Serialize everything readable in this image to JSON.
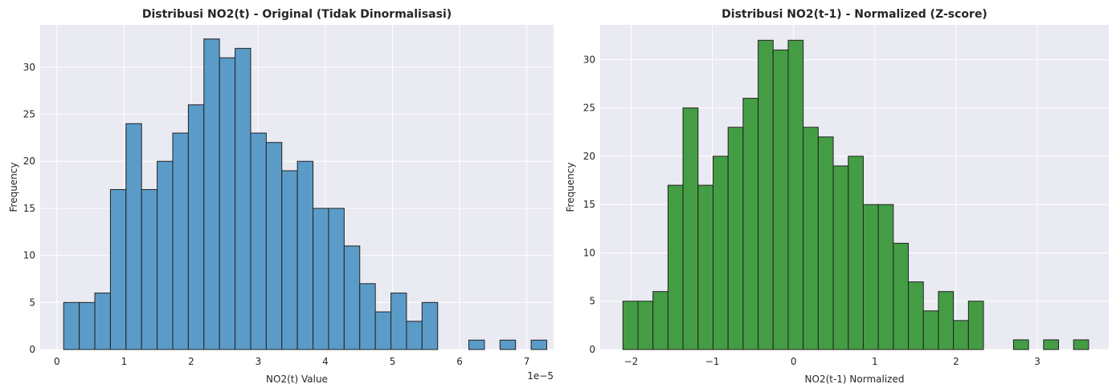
{
  "chart_data": [
    {
      "type": "bar",
      "title": "Distribusi NO2(t) - Original (Tidak Dinormalisasi)",
      "xlabel": "NO2(t) Value",
      "ylabel": "Frequency",
      "x_offset_label": "1e−5",
      "x_scale": 1e-05,
      "bin_start": 0.1,
      "bin_width": 0.2322,
      "counts": [
        5,
        5,
        6,
        17,
        24,
        17,
        20,
        23,
        26,
        33,
        31,
        32,
        23,
        22,
        19,
        20,
        15,
        15,
        11,
        7,
        4,
        6,
        3,
        5,
        0,
        0,
        1,
        0,
        1,
        0,
        1
      ],
      "xlim": [
        -0.25,
        7.4
      ],
      "ylim": [
        0,
        34.5
      ],
      "x_ticks": [
        0,
        1,
        2,
        3,
        4,
        5,
        6,
        7
      ],
      "y_ticks": [
        0,
        5,
        10,
        15,
        20,
        25,
        30
      ],
      "bar_color": "#5b9bc8",
      "grid": true
    },
    {
      "type": "bar",
      "title": "Distribusi NO2(t-1) - Normalized (Z-score)",
      "xlabel": "NO2(t-1) Normalized",
      "ylabel": "Frequency",
      "bin_start": -2.1,
      "bin_width": 0.1849,
      "counts": [
        5,
        5,
        6,
        17,
        25,
        17,
        20,
        23,
        26,
        32,
        31,
        32,
        23,
        22,
        19,
        20,
        15,
        15,
        11,
        7,
        4,
        6,
        3,
        5,
        0,
        0,
        1,
        0,
        1,
        0,
        1
      ],
      "xlim": [
        -2.38,
        3.88
      ],
      "ylim": [
        0,
        33.6
      ],
      "x_ticks": [
        -2,
        -1,
        0,
        1,
        2,
        3
      ],
      "x_tick_labels": [
        "−2",
        "−1",
        "0",
        "1",
        "2",
        "3"
      ],
      "y_ticks": [
        0,
        5,
        10,
        15,
        20,
        25,
        30
      ],
      "bar_color": "#449d44",
      "grid": true
    }
  ]
}
